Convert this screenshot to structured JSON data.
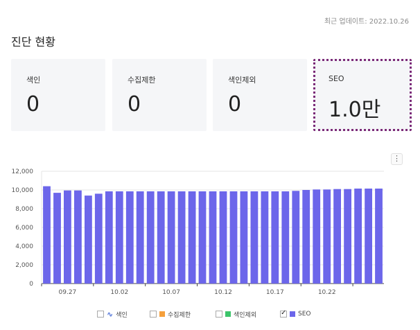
{
  "header": {
    "updated": "최근 업데이트: 2022.10.26",
    "title": "진단 현황"
  },
  "cards": [
    {
      "label": "색인",
      "value": "0"
    },
    {
      "label": "수집제한",
      "value": "0"
    },
    {
      "label": "색인제외",
      "value": "0"
    },
    {
      "label": "SEO",
      "value": "1.0만"
    }
  ],
  "more_menu": "⋮",
  "chart_data": {
    "type": "bar",
    "x_tick_labels": [
      "09.27",
      "10.02",
      "10.07",
      "10.12",
      "10.17",
      "10.22"
    ],
    "y_ticks": [
      "0",
      "2,000",
      "4,000",
      "6,000",
      "8,000",
      "10,000",
      "12,000"
    ],
    "ylim": [
      0,
      12000
    ],
    "grid": true,
    "legend_position": "bottom",
    "series": [
      {
        "name": "SEO",
        "color": "#6c66ea",
        "values": [
          10400,
          9700,
          9950,
          9950,
          9400,
          9600,
          9850,
          9850,
          9850,
          9850,
          9850,
          9850,
          9850,
          9850,
          9850,
          9850,
          9850,
          9850,
          9850,
          9850,
          9850,
          9850,
          9850,
          9850,
          9900,
          10000,
          10050,
          10050,
          10100,
          10100,
          10150,
          10150,
          10150
        ]
      }
    ]
  },
  "legend": [
    {
      "label": "색인",
      "color": "#4a6fd8",
      "checked": false,
      "icon": "line-icon"
    },
    {
      "label": "수집제한",
      "color": "#f5a03c",
      "checked": false,
      "icon": "square"
    },
    {
      "label": "색인제외",
      "color": "#3cc46a",
      "checked": false,
      "icon": "square"
    },
    {
      "label": "SEO",
      "color": "#6c66ea",
      "checked": true,
      "icon": "square"
    }
  ]
}
